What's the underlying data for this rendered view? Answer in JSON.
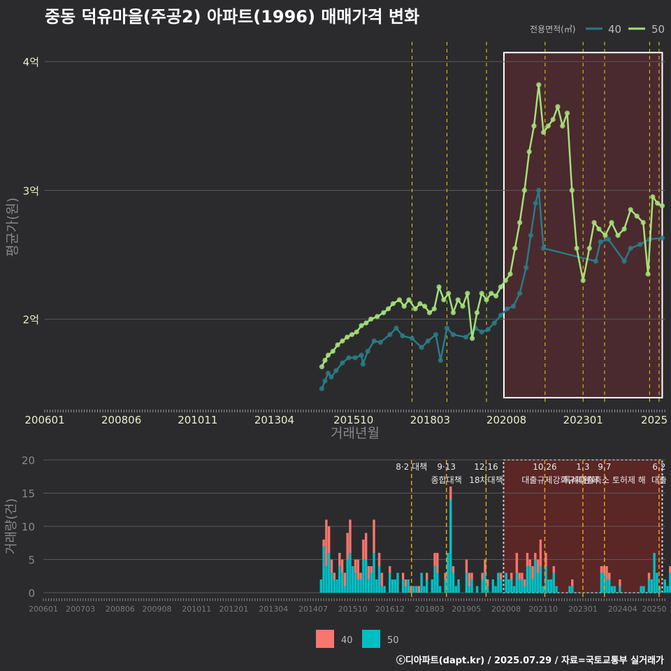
{
  "title": "중동 덕유마을(주공2) 아파트(1996) 매매가격 변화",
  "footer": "ⓒ디아파트(dapt.kr) / 2025.07.29 / 자료=국토교통부 실거래가",
  "colors": {
    "background": "#2b2b2d",
    "area40_line": "#2b7b86",
    "area50_line": "#a6e07a",
    "bar40": "#f8766d",
    "bar50": "#00bfc4",
    "highlight_fill": "#4a2a2e",
    "policy_line": "#e7d31a"
  },
  "legend_top": {
    "title": "전용면적(㎡)",
    "items": [
      "40",
      "50"
    ]
  },
  "legend_bottom": {
    "items": [
      "40",
      "50"
    ]
  },
  "chart_data": [
    {
      "type": "line",
      "ylabel": "평균가(원)",
      "xlabel": "거래년월",
      "y_ticks": [
        {
          "value": 2.0,
          "label": "2억"
        },
        {
          "value": 3.0,
          "label": "3억"
        },
        {
          "value": 4.0,
          "label": "4억"
        }
      ],
      "x_ticks": [
        "200601",
        "200806",
        "201011",
        "201304",
        "201510",
        "201803",
        "202008",
        "202301",
        "2025"
      ],
      "ylim": [
        1.33,
        4.12
      ],
      "unit": "억",
      "highlight_range": [
        "2020.5",
        "2025.5"
      ],
      "policy_dates": [
        2017.6,
        2018.7,
        2019.95,
        2021.8,
        2023.0,
        2023.68,
        2025.1,
        2025.4
      ],
      "series": [
        {
          "name": "40",
          "x": [
            2014.75,
            2014.85,
            2014.95,
            2015.05,
            2015.2,
            2015.4,
            2015.6,
            2015.8,
            2016.0,
            2016.05,
            2016.2,
            2016.4,
            2016.6,
            2016.9,
            2017.1,
            2017.3,
            2017.6,
            2017.9,
            2018.1,
            2018.35,
            2018.5,
            2018.7,
            2018.9,
            2019.3,
            2019.6,
            2019.8,
            2020.0,
            2020.2,
            2020.4,
            2020.6,
            2020.8,
            2021.0,
            2021.2,
            2021.35,
            2021.5,
            2021.6,
            2021.75,
            2023.4,
            2023.55,
            2023.8,
            2024.3,
            2024.5,
            2024.8,
            2025.1,
            2025.5
          ],
          "y": [
            1.46,
            1.52,
            1.58,
            1.55,
            1.6,
            1.66,
            1.7,
            1.7,
            1.72,
            1.65,
            1.75,
            1.83,
            1.82,
            1.88,
            1.93,
            1.87,
            1.85,
            1.78,
            1.83,
            1.88,
            1.68,
            1.93,
            1.88,
            1.86,
            1.93,
            1.9,
            1.92,
            1.97,
            2.03,
            2.08,
            2.1,
            2.2,
            2.4,
            2.65,
            2.9,
            3.0,
            2.55,
            2.45,
            2.6,
            2.62,
            2.45,
            2.55,
            2.58,
            2.62,
            2.63
          ]
        },
        {
          "name": "50",
          "x": [
            2014.75,
            2014.85,
            2014.95,
            2015.1,
            2015.25,
            2015.4,
            2015.55,
            2015.7,
            2015.85,
            2016.0,
            2016.15,
            2016.3,
            2016.5,
            2016.7,
            2016.85,
            2017.0,
            2017.2,
            2017.35,
            2017.5,
            2017.7,
            2017.85,
            2018.0,
            2018.15,
            2018.3,
            2018.45,
            2018.6,
            2018.75,
            2018.9,
            2019.05,
            2019.2,
            2019.35,
            2019.5,
            2019.65,
            2019.8,
            2019.95,
            2020.1,
            2020.25,
            2020.4,
            2020.55,
            2020.7,
            2020.85,
            2021.0,
            2021.15,
            2021.3,
            2021.45,
            2021.6,
            2021.75,
            2021.9,
            2022.05,
            2022.2,
            2022.35,
            2022.5,
            2022.65,
            2022.8,
            2023.0,
            2023.2,
            2023.35,
            2023.5,
            2023.7,
            2023.9,
            2024.1,
            2024.3,
            2024.5,
            2024.7,
            2024.9,
            2025.05,
            2025.2,
            2025.35,
            2025.5
          ],
          "y": [
            1.63,
            1.68,
            1.72,
            1.75,
            1.8,
            1.83,
            1.86,
            1.88,
            1.9,
            1.95,
            1.97,
            2.0,
            2.02,
            2.05,
            2.08,
            2.12,
            2.15,
            2.1,
            2.15,
            2.08,
            2.12,
            2.1,
            2.05,
            2.08,
            2.25,
            2.15,
            2.2,
            2.05,
            2.15,
            2.1,
            2.2,
            1.85,
            2.05,
            2.2,
            2.15,
            2.2,
            2.18,
            2.25,
            2.3,
            2.35,
            2.55,
            2.75,
            3.0,
            3.3,
            3.5,
            3.82,
            3.45,
            3.5,
            3.55,
            3.65,
            3.5,
            3.6,
            3.0,
            2.55,
            2.3,
            2.55,
            2.75,
            2.7,
            2.65,
            2.75,
            2.65,
            2.7,
            2.85,
            2.8,
            2.75,
            2.35,
            2.95,
            2.9,
            2.88
          ]
        }
      ]
    },
    {
      "type": "bar",
      "ylabel": "거래량(건)",
      "ylim": [
        0,
        20
      ],
      "y_ticks": [
        0,
        5,
        10,
        15,
        20
      ],
      "x_ticks": [
        "200601",
        "200703",
        "200806",
        "200908",
        "201011",
        "201201",
        "201304",
        "201407",
        "201510",
        "201612",
        "201803",
        "201905",
        "202008",
        "202110",
        "202301",
        "202404",
        "20250"
      ],
      "highlight_range": [
        "2020.5",
        "2025.5"
      ],
      "policy_annotations": [
        {
          "x": 2017.6,
          "label": "8·2 대책"
        },
        {
          "x": 2018.7,
          "label": "9·13"
        },
        {
          "x": 2018.7,
          "label": "종합대책"
        },
        {
          "x": 2019.95,
          "label": "12·16"
        },
        {
          "x": 2019.95,
          "label": "18차대책"
        },
        {
          "x": 2021.8,
          "label": "10.26"
        },
        {
          "x": 2021.8,
          "label": "대출규제강화"
        },
        {
          "x": 2023.0,
          "label": "1.3"
        },
        {
          "x": 2023.0,
          "label": "규제완화"
        },
        {
          "x": 2023.68,
          "label": "9.7"
        },
        {
          "x": 2023.68,
          "label": "특례대출축소 토허제 해"
        },
        {
          "x": 2025.4,
          "label": "6.2"
        },
        {
          "x": 2025.4,
          "label": "대출"
        }
      ],
      "monthly_series": [
        {
          "name": "50",
          "start": 2014.75,
          "values": [
            2,
            7,
            4,
            6,
            3,
            2,
            2,
            4,
            3,
            1,
            5,
            6,
            4,
            3,
            2,
            2,
            5,
            5,
            2,
            3,
            6,
            2,
            4,
            1,
            1,
            0,
            3,
            2,
            2,
            3,
            0,
            2,
            1,
            2,
            0,
            1,
            1,
            0,
            3,
            1,
            2,
            0,
            2,
            4,
            3,
            1,
            0,
            2,
            6,
            14,
            3,
            1,
            2,
            0,
            0,
            3,
            1,
            2,
            0,
            1,
            0,
            2,
            3,
            1,
            0,
            2,
            1,
            3,
            2,
            0,
            3,
            2,
            2,
            1,
            3,
            2,
            2,
            1,
            4,
            4,
            2,
            5,
            3,
            4,
            1,
            4,
            2,
            2,
            3,
            1,
            0,
            0,
            0,
            0,
            1,
            1,
            0,
            0,
            0,
            0,
            0,
            0,
            0,
            0,
            0,
            0,
            3,
            3,
            2,
            2,
            1,
            1,
            0,
            1,
            0,
            0,
            0,
            0,
            0,
            0,
            0,
            1,
            1,
            0,
            2,
            2,
            6,
            3,
            1,
            0,
            2,
            1,
            3,
            2,
            0,
            2,
            4,
            2
          ]
        },
        {
          "name": "40",
          "start": 2014.75,
          "values": [
            0,
            1,
            7,
            4,
            2,
            1,
            0,
            2,
            2,
            2,
            4,
            5,
            0,
            2,
            3,
            1,
            3,
            4,
            2,
            1,
            5,
            0,
            2,
            2,
            0,
            0,
            1,
            0,
            0,
            0,
            0,
            1,
            1,
            0,
            1,
            0,
            0,
            1,
            0,
            0,
            1,
            0,
            0,
            2,
            3,
            0,
            0,
            1,
            0,
            2,
            1,
            0,
            0,
            0,
            0,
            2,
            2,
            1,
            0,
            0,
            0,
            1,
            2,
            1,
            0,
            0,
            0,
            0,
            1,
            0,
            0,
            0,
            1,
            0,
            3,
            1,
            1,
            1,
            2,
            1,
            2,
            1,
            2,
            4,
            0,
            2,
            0,
            0,
            1,
            0,
            0,
            0,
            0,
            0,
            0,
            1,
            0,
            0,
            0,
            0,
            0,
            0,
            0,
            0,
            0,
            0,
            1,
            1,
            2,
            1,
            0,
            0,
            0,
            1,
            0,
            0,
            0,
            0,
            0,
            0,
            0,
            0,
            0,
            0,
            1,
            0,
            0,
            0,
            0,
            0,
            0,
            0,
            1,
            0,
            0,
            0,
            1,
            3
          ]
        }
      ]
    }
  ]
}
